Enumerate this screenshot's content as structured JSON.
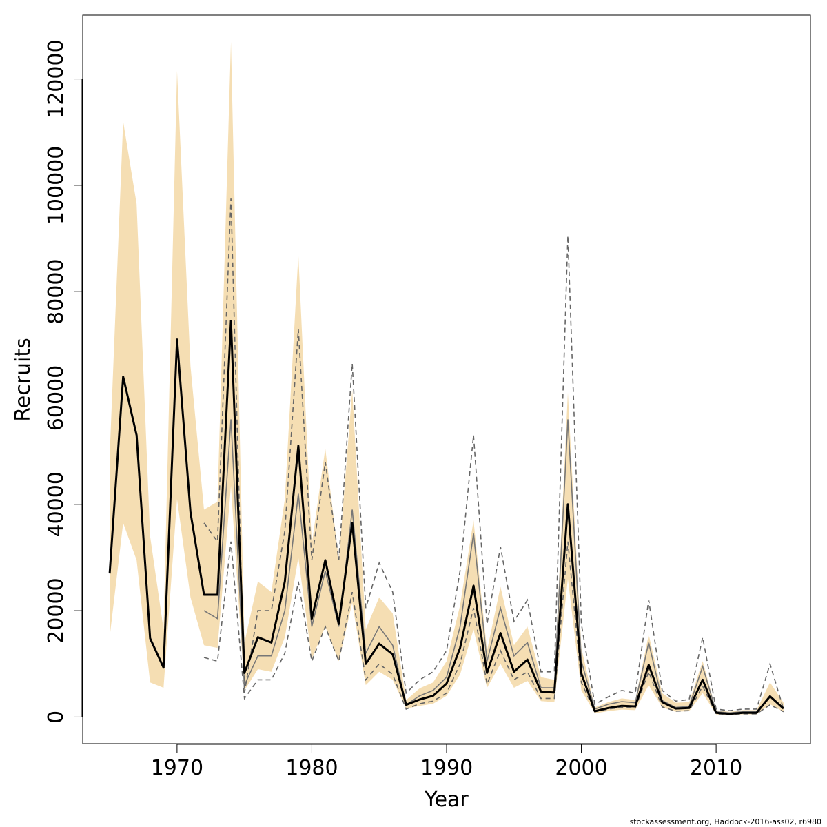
{
  "chart_data": {
    "type": "line",
    "title": "",
    "xlabel": "Year",
    "ylabel": "Recruits",
    "xlim": [
      1963,
      2017
    ],
    "ylim": [
      -5000,
      132000
    ],
    "xticks": [
      1970,
      1980,
      1990,
      2000,
      2010
    ],
    "yticks": [
      0,
      20000,
      40000,
      60000,
      80000,
      100000,
      120000
    ],
    "grid": false,
    "colors": {
      "band": "#f5deb3",
      "estimate": "#000000",
      "retro": "#777777",
      "retro_dashed": "#666666"
    },
    "years": [
      1965,
      1966,
      1967,
      1968,
      1969,
      1970,
      1971,
      1972,
      1973,
      1974,
      1975,
      1976,
      1977,
      1978,
      1979,
      1980,
      1981,
      1982,
      1983,
      1984,
      1985,
      1986,
      1987,
      1988,
      1989,
      1990,
      1991,
      1992,
      1993,
      1994,
      1995,
      1996,
      1997,
      1998,
      1999,
      2000,
      2001,
      2002,
      2003,
      2004,
      2005,
      2006,
      2007,
      2008,
      2009,
      2010,
      2011,
      2012,
      2013,
      2014,
      2015
    ],
    "series": [
      {
        "role": "estimate",
        "values": [
          27000,
          64000,
          53000,
          14800,
          9300,
          71000,
          38500,
          23000,
          23000,
          74500,
          8300,
          15000,
          14000,
          25500,
          51000,
          18500,
          29500,
          17500,
          36500,
          10000,
          13800,
          11800,
          2300,
          3300,
          4000,
          6300,
          13000,
          24700,
          8300,
          15800,
          8500,
          10800,
          4800,
          4600,
          40000,
          8200,
          1100,
          1700,
          2100,
          2000,
          9800,
          2800,
          1600,
          1700,
          7000,
          800,
          600,
          800,
          800,
          3900,
          1600
        ]
      },
      {
        "role": "band_upper",
        "values": [
          49000,
          112000,
          96500,
          34000,
          16500,
          121500,
          66000,
          39000,
          40500,
          127000,
          14000,
          25500,
          23500,
          41000,
          87000,
          32500,
          50500,
          29500,
          61500,
          16500,
          22500,
          19500,
          3200,
          5400,
          6500,
          10500,
          21000,
          37000,
          12500,
          24500,
          13500,
          17000,
          7500,
          7000,
          61000,
          13000,
          1800,
          2800,
          3500,
          3200,
          15500,
          4500,
          2700,
          2800,
          10500,
          1300,
          1000,
          1300,
          1300,
          6500,
          2700
        ]
      },
      {
        "role": "band_lower",
        "values": [
          15000,
          36500,
          29500,
          6500,
          5500,
          41000,
          22500,
          13500,
          13000,
          43500,
          5000,
          9000,
          8500,
          15000,
          30000,
          11000,
          17000,
          10500,
          21500,
          6000,
          8500,
          7000,
          1600,
          2100,
          2500,
          4000,
          8000,
          16500,
          5500,
          10000,
          5500,
          6800,
          3000,
          2800,
          26000,
          5000,
          700,
          1100,
          1400,
          1300,
          6000,
          1800,
          1000,
          1100,
          4500,
          500,
          400,
          500,
          500,
          2400,
          1000
        ]
      },
      {
        "role": "retrospective",
        "start_year": 1972,
        "values": [
          20000,
          18500,
          56000,
          6000,
          11500,
          11500,
          20000,
          42000,
          17000,
          27500,
          17000,
          39000,
          12000,
          17000,
          13500,
          2300,
          4000,
          5000,
          7500,
          17000,
          34500,
          10500,
          20500,
          11500,
          14000,
          5500,
          5500,
          56000,
          10500,
          1500,
          2400,
          2900,
          2700,
          14000,
          3100,
          1800,
          2000,
          9500,
          1000,
          800,
          1000,
          1000,
          4000,
          1700
        ]
      },
      {
        "role": "retrospective_upper",
        "start_year": 1972,
        "values": [
          36500,
          33000,
          97500,
          4500,
          20000,
          20000,
          35000,
          73000,
          29500,
          48000,
          29500,
          66500,
          20500,
          29000,
          23500,
          4500,
          7000,
          8500,
          12500,
          27500,
          53000,
          17500,
          32000,
          18000,
          22000,
          8500,
          8500,
          90500,
          17500,
          2400,
          3800,
          5000,
          4500,
          22000,
          5000,
          3000,
          3300,
          15000,
          1500,
          1200,
          1500,
          1500,
          10000,
          1500
        ]
      },
      {
        "role": "retrospective_lower",
        "start_year": 1972,
        "values": [
          11200,
          10500,
          33000,
          3500,
          7000,
          7000,
          12000,
          25500,
          10500,
          17000,
          10500,
          23500,
          7000,
          10000,
          8000,
          1500,
          2500,
          3000,
          4500,
          10000,
          20500,
          6200,
          12500,
          7000,
          8500,
          3500,
          3500,
          33000,
          6500,
          1000,
          1500,
          1800,
          1700,
          8500,
          1900,
          1100,
          1200,
          5800,
          600,
          500,
          600,
          600,
          2300,
          1000
        ]
      }
    ]
  },
  "footer": {
    "credit": "stockassessment.org, Haddock-2016-ass02, r6980"
  }
}
